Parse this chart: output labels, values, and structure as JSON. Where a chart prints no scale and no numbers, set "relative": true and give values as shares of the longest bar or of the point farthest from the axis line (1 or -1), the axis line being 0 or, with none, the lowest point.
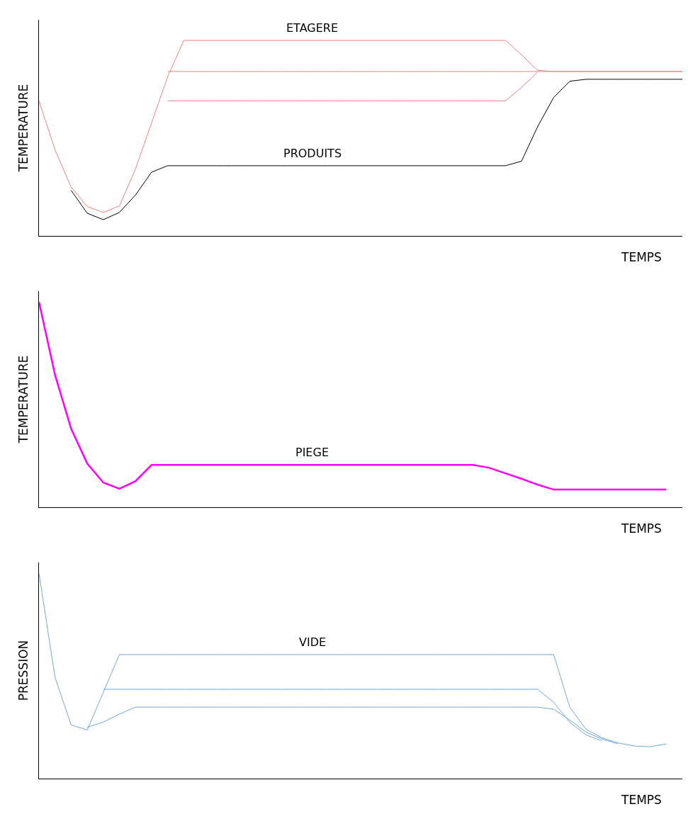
{
  "chart_data": [
    {
      "type": "line",
      "relative": true,
      "ylabel": "TEMPERATURE",
      "xlabel": "TEMPS",
      "categories": [
        null,
        null,
        null,
        null,
        null,
        null,
        null,
        null,
        null,
        null,
        null,
        null,
        null,
        null,
        null,
        null,
        null,
        null,
        null,
        null,
        null,
        null,
        null,
        null,
        null,
        null,
        null,
        null,
        null,
        null,
        null,
        null,
        null,
        null,
        null,
        null,
        null,
        null,
        null,
        null,
        null
      ],
      "series": [
        {
          "name": "ETAGERE",
          "color": "#f08080",
          "values": [
            0.691,
            0.44,
            0.25,
            0.15,
            0.12,
            0.153,
            0.342,
            0.578,
            0.814,
            1,
            1,
            1,
            1,
            1,
            1,
            1,
            1,
            1,
            1,
            1,
            1,
            1,
            1,
            1,
            1,
            1,
            1,
            1,
            1,
            1,
            0.927,
            0.847,
            0.841,
            0.841,
            0.841,
            0.841,
            0.841,
            0.841,
            0.841,
            0.841,
            0.841
          ]
        },
        {
          "color": "#f08080",
          "values": [
            null,
            null,
            null,
            null,
            null,
            null,
            null,
            null,
            0.841,
            0.841,
            0.841,
            0.841,
            0.841,
            0.841,
            0.841,
            0.841,
            0.841,
            0.841,
            0.841,
            0.841,
            0.841,
            0.841,
            0.841,
            0.841,
            0.841,
            0.841,
            0.841,
            0.841,
            0.841,
            0.841,
            0.841,
            0.841,
            0.841,
            0.841,
            0.841,
            0.841,
            0.841,
            0.841,
            0.841,
            0.841,
            0.841
          ]
        },
        {
          "color": "#f08080",
          "values": [
            null,
            null,
            null,
            null,
            null,
            null,
            null,
            null,
            0.691,
            0.691,
            0.691,
            0.691,
            0.691,
            0.691,
            0.691,
            0.691,
            0.691,
            0.691,
            0.691,
            0.691,
            0.691,
            0.691,
            0.691,
            0.691,
            0.691,
            0.691,
            0.691,
            0.691,
            0.691,
            0.691,
            0.759,
            0.837,
            null,
            null,
            null,
            null,
            null,
            null,
            null,
            null,
            null
          ]
        },
        {
          "name": "PRODUITS",
          "color": "#000000",
          "values": [
            null,
            null,
            0.233,
            0.116,
            0.083,
            0.12,
            0.209,
            0.326,
            0.359,
            0.359,
            0.359,
            0.359,
            0.359,
            0.359,
            0.359,
            0.359,
            0.359,
            0.359,
            0.359,
            0.359,
            0.359,
            0.359,
            0.359,
            0.359,
            0.359,
            0.359,
            0.359,
            0.359,
            0.359,
            0.359,
            0.382,
            0.558,
            0.708,
            0.791,
            0.801,
            0.801,
            0.801,
            0.801,
            0.801,
            0.801,
            0.801
          ]
        }
      ]
    },
    {
      "type": "line",
      "relative": true,
      "ylabel": "TEMPERATURE",
      "xlabel": "TEMPS",
      "categories": [
        null,
        null,
        null,
        null,
        null,
        null,
        null,
        null,
        null,
        null,
        null,
        null,
        null,
        null,
        null,
        null,
        null,
        null,
        null,
        null,
        null,
        null,
        null,
        null,
        null,
        null,
        null,
        null,
        null,
        null,
        null,
        null,
        null,
        null,
        null,
        null,
        null,
        null,
        null,
        null,
        null
      ],
      "series": [
        {
          "name": "PIEGE",
          "color": "#ff00ff",
          "values": [
            1,
            0.644,
            0.382,
            0.213,
            0.12,
            0.09,
            0.127,
            0.206,
            0.206,
            0.206,
            0.206,
            0.206,
            0.206,
            0.206,
            0.206,
            0.206,
            0.206,
            0.206,
            0.206,
            0.206,
            0.206,
            0.206,
            0.206,
            0.206,
            0.206,
            0.206,
            0.206,
            0.206,
            0.192,
            0.165,
            0.139,
            0.11,
            0.086,
            0.086,
            0.086,
            0.086,
            0.086,
            0.086,
            0.086,
            0.086,
            null
          ]
        }
      ]
    },
    {
      "type": "line",
      "relative": true,
      "ylabel": "PRESSION",
      "xlabel": "TEMPS",
      "categories": [
        null,
        null,
        null,
        null,
        null,
        null,
        null,
        null,
        null,
        null,
        null,
        null,
        null,
        null,
        null,
        null,
        null,
        null,
        null,
        null,
        null,
        null,
        null,
        null,
        null,
        null,
        null,
        null,
        null,
        null,
        null,
        null,
        null,
        null,
        null,
        null,
        null,
        null,
        null,
        null,
        null
      ],
      "series": [
        {
          "name": "VIDE",
          "color": "#6fa8dc",
          "values": [
            1,
            0.493,
            0.261,
            0.237,
            0.42,
            0.604,
            0.604,
            0.604,
            0.604,
            0.604,
            0.604,
            0.604,
            0.604,
            0.604,
            0.604,
            0.604,
            0.604,
            0.604,
            0.604,
            0.604,
            0.604,
            0.604,
            0.604,
            0.604,
            0.604,
            0.604,
            0.604,
            0.604,
            0.604,
            0.604,
            0.604,
            0.604,
            0.604,
            0.348,
            0.242,
            0.198,
            0.174,
            0.159,
            0.155,
            0.169,
            null
          ]
        },
        {
          "color": "#6fa8dc",
          "values": [
            null,
            null,
            null,
            null,
            0.435,
            0.435,
            0.435,
            0.435,
            0.435,
            0.435,
            0.435,
            0.435,
            0.435,
            0.435,
            0.435,
            0.435,
            0.435,
            0.435,
            0.435,
            0.435,
            0.435,
            0.435,
            0.435,
            0.435,
            0.435,
            0.435,
            0.435,
            0.435,
            0.435,
            0.435,
            0.435,
            0.435,
            0.372,
            0.275,
            0.213,
            0.184,
            null,
            null,
            null,
            null,
            null
          ]
        },
        {
          "color": "#6fa8dc",
          "values": [
            null,
            null,
            null,
            0.25,
            0.275,
            0.314,
            0.348,
            0.348,
            0.348,
            0.348,
            0.348,
            0.348,
            0.348,
            0.348,
            0.348,
            0.348,
            0.348,
            0.348,
            0.348,
            0.348,
            0.348,
            0.348,
            0.348,
            0.348,
            0.348,
            0.348,
            0.348,
            0.348,
            0.348,
            0.348,
            0.348,
            0.348,
            0.338,
            0.285,
            0.227,
            0.193,
            0.169,
            null,
            null,
            null,
            null
          ]
        }
      ]
    }
  ]
}
